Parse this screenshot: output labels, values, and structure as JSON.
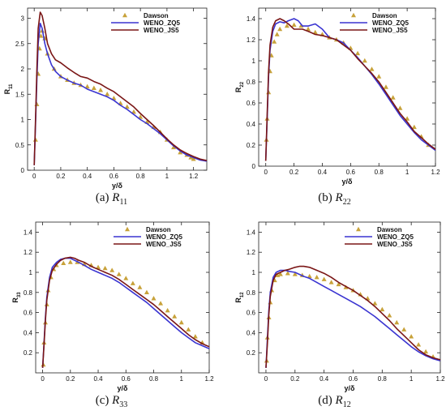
{
  "colors": {
    "dawson": "#c8a23a",
    "weno_zq5": "#3a34d1",
    "weno_js5": "#7a1616"
  },
  "chart_data": [
    {
      "type": "line",
      "panel_tag": "(a)",
      "symbol": "R",
      "subscript": "11",
      "xlabel": "y/δ",
      "ylabel_main": "R",
      "ylabel_sub": "11",
      "xlim": [
        -0.05,
        1.3
      ],
      "ylim": [
        0,
        3.2
      ],
      "xticks": [
        "0",
        "0.2",
        "0.4",
        "0.6",
        "0.8",
        "1",
        "1.2"
      ],
      "xtick_values": [
        0,
        0.2,
        0.4,
        0.6,
        0.8,
        1.0,
        1.2
      ],
      "yticks": [
        "0",
        "0.5",
        "1",
        "1.5",
        "2",
        "2.5",
        "3"
      ],
      "ytick_values": [
        0,
        0.5,
        1,
        1.5,
        2,
        2.5,
        3
      ],
      "legend_position": "top-right",
      "series": [
        {
          "name": "Dawson",
          "style": "markers",
          "x": [
            0.01,
            0.02,
            0.03,
            0.04,
            0.05,
            0.06,
            0.08,
            0.1,
            0.15,
            0.2,
            0.25,
            0.3,
            0.35,
            0.4,
            0.45,
            0.5,
            0.55,
            0.6,
            0.65,
            0.7,
            0.75,
            0.8,
            0.85,
            0.9,
            0.95,
            1.0,
            1.05,
            1.1,
            1.15,
            1.18,
            1.2
          ],
          "y": [
            0.6,
            1.3,
            1.9,
            2.4,
            2.65,
            2.75,
            2.6,
            2.3,
            2.0,
            1.85,
            1.78,
            1.72,
            1.68,
            1.65,
            1.62,
            1.58,
            1.5,
            1.42,
            1.32,
            1.25,
            1.15,
            1.05,
            0.95,
            0.85,
            0.75,
            0.6,
            0.45,
            0.35,
            0.3,
            0.25,
            0.22
          ]
        },
        {
          "name": "WENO_ZQ5",
          "style": "line",
          "x": [
            0,
            0.01,
            0.02,
            0.03,
            0.045,
            0.06,
            0.08,
            0.1,
            0.13,
            0.16,
            0.2,
            0.25,
            0.3,
            0.35,
            0.4,
            0.45,
            0.5,
            0.55,
            0.6,
            0.65,
            0.7,
            0.75,
            0.8,
            0.85,
            0.9,
            0.95,
            1.0,
            1.05,
            1.1,
            1.15,
            1.2,
            1.25,
            1.3
          ],
          "y": [
            0.1,
            0.9,
            1.8,
            2.5,
            2.9,
            2.8,
            2.5,
            2.3,
            2.08,
            1.95,
            1.85,
            1.78,
            1.72,
            1.68,
            1.6,
            1.55,
            1.5,
            1.45,
            1.38,
            1.28,
            1.2,
            1.1,
            1.0,
            0.92,
            0.82,
            0.72,
            0.6,
            0.48,
            0.38,
            0.3,
            0.25,
            0.2,
            0.18
          ]
        },
        {
          "name": "WENO_JS5",
          "style": "line",
          "x": [
            0,
            0.01,
            0.02,
            0.03,
            0.045,
            0.06,
            0.08,
            0.1,
            0.13,
            0.16,
            0.2,
            0.25,
            0.3,
            0.35,
            0.4,
            0.45,
            0.5,
            0.55,
            0.6,
            0.65,
            0.7,
            0.75,
            0.8,
            0.85,
            0.9,
            0.95,
            1.0,
            1.05,
            1.1,
            1.15,
            1.2,
            1.25,
            1.3
          ],
          "y": [
            0.1,
            1.0,
            2.0,
            2.8,
            3.12,
            3.05,
            2.8,
            2.5,
            2.3,
            2.18,
            2.12,
            2.02,
            1.93,
            1.85,
            1.82,
            1.75,
            1.7,
            1.62,
            1.55,
            1.45,
            1.35,
            1.25,
            1.12,
            1.0,
            0.88,
            0.75,
            0.62,
            0.5,
            0.4,
            0.33,
            0.27,
            0.22,
            0.19
          ]
        }
      ]
    },
    {
      "type": "line",
      "panel_tag": "(b)",
      "symbol": "R",
      "subscript": "22",
      "xlabel": "y/δ",
      "ylabel_main": "R",
      "ylabel_sub": "22",
      "xlim": [
        -0.05,
        1.2
      ],
      "ylim": [
        0,
        1.5
      ],
      "xticks": [
        "0",
        "0.2",
        "0.4",
        "0.6",
        "0.8",
        "1",
        "1.2"
      ],
      "xtick_values": [
        0,
        0.2,
        0.4,
        0.6,
        0.8,
        1.0,
        1.2
      ],
      "yticks": [
        "0",
        "0.2",
        "0.4",
        "0.6",
        "0.8",
        "1",
        "1.2",
        "1.4"
      ],
      "ytick_values": [
        0,
        0.2,
        0.4,
        0.6,
        0.8,
        1.0,
        1.2,
        1.4
      ],
      "legend_position": "top-right",
      "series": [
        {
          "name": "Dawson",
          "style": "markers",
          "x": [
            0.005,
            0.01,
            0.02,
            0.03,
            0.04,
            0.06,
            0.08,
            0.1,
            0.15,
            0.2,
            0.25,
            0.3,
            0.35,
            0.4,
            0.45,
            0.5,
            0.55,
            0.6,
            0.65,
            0.7,
            0.75,
            0.8,
            0.85,
            0.9,
            0.95,
            1.0,
            1.05,
            1.1,
            1.15
          ],
          "y": [
            0.25,
            0.45,
            0.7,
            0.9,
            1.05,
            1.18,
            1.25,
            1.3,
            1.33,
            1.34,
            1.33,
            1.3,
            1.27,
            1.25,
            1.22,
            1.2,
            1.17,
            1.12,
            1.07,
            1.0,
            0.92,
            0.85,
            0.75,
            0.65,
            0.55,
            0.45,
            0.37,
            0.28,
            0.2
          ]
        },
        {
          "name": "WENO_ZQ5",
          "style": "line",
          "x": [
            0,
            0.01,
            0.02,
            0.03,
            0.05,
            0.07,
            0.1,
            0.13,
            0.16,
            0.2,
            0.23,
            0.26,
            0.3,
            0.35,
            0.4,
            0.45,
            0.5,
            0.55,
            0.6,
            0.65,
            0.7,
            0.75,
            0.8,
            0.85,
            0.9,
            0.95,
            1.0,
            1.05,
            1.1,
            1.15,
            1.2
          ],
          "y": [
            0.05,
            0.45,
            0.85,
            1.1,
            1.28,
            1.35,
            1.37,
            1.36,
            1.38,
            1.4,
            1.38,
            1.33,
            1.33,
            1.35,
            1.3,
            1.22,
            1.2,
            1.17,
            1.1,
            1.03,
            0.95,
            0.87,
            0.78,
            0.68,
            0.58,
            0.48,
            0.4,
            0.32,
            0.25,
            0.2,
            0.15
          ]
        },
        {
          "name": "WENO_JS5",
          "style": "line",
          "x": [
            0,
            0.01,
            0.02,
            0.03,
            0.05,
            0.07,
            0.1,
            0.13,
            0.16,
            0.2,
            0.23,
            0.26,
            0.3,
            0.35,
            0.4,
            0.45,
            0.5,
            0.55,
            0.6,
            0.65,
            0.7,
            0.75,
            0.8,
            0.85,
            0.9,
            0.95,
            1.0,
            1.05,
            1.1,
            1.15,
            1.2
          ],
          "y": [
            0.05,
            0.5,
            0.9,
            1.15,
            1.32,
            1.38,
            1.4,
            1.38,
            1.35,
            1.3,
            1.3,
            1.3,
            1.28,
            1.25,
            1.24,
            1.22,
            1.2,
            1.15,
            1.1,
            1.02,
            0.95,
            0.88,
            0.8,
            0.7,
            0.6,
            0.5,
            0.42,
            0.33,
            0.27,
            0.21,
            0.16
          ]
        }
      ]
    },
    {
      "type": "line",
      "panel_tag": "(c)",
      "symbol": "R",
      "subscript": "33",
      "xlabel": "y/δ",
      "ylabel_main": "R",
      "ylabel_sub": "33",
      "xlim": [
        -0.05,
        1.2
      ],
      "ylim": [
        0,
        1.5
      ],
      "xticks": [
        "0",
        "0.2",
        "0.4",
        "0.6",
        "0.8",
        "1",
        "1.2"
      ],
      "xtick_values": [
        0,
        0.2,
        0.4,
        0.6,
        0.8,
        1.0,
        1.2
      ],
      "yticks": [
        "0.2",
        "0.4",
        "0.6",
        "0.8",
        "1",
        "1.2",
        "1.4"
      ],
      "ytick_values": [
        0.2,
        0.4,
        0.6,
        0.8,
        1.0,
        1.2,
        1.4
      ],
      "legend_position": "top-right",
      "series": [
        {
          "name": "Dawson",
          "style": "markers",
          "x": [
            0.005,
            0.01,
            0.02,
            0.03,
            0.04,
            0.06,
            0.08,
            0.1,
            0.15,
            0.2,
            0.25,
            0.3,
            0.35,
            0.4,
            0.45,
            0.5,
            0.55,
            0.6,
            0.65,
            0.7,
            0.75,
            0.8,
            0.85,
            0.9,
            0.95,
            1.0,
            1.05,
            1.1,
            1.15
          ],
          "y": [
            0.08,
            0.3,
            0.5,
            0.68,
            0.82,
            0.95,
            1.03,
            1.07,
            1.09,
            1.1,
            1.1,
            1.08,
            1.07,
            1.05,
            1.04,
            1.02,
            0.98,
            0.94,
            0.89,
            0.85,
            0.8,
            0.74,
            0.69,
            0.62,
            0.56,
            0.5,
            0.43,
            0.36,
            0.3
          ]
        },
        {
          "name": "WENO_ZQ5",
          "style": "line",
          "x": [
            0,
            0.01,
            0.02,
            0.03,
            0.05,
            0.07,
            0.1,
            0.13,
            0.16,
            0.2,
            0.23,
            0.26,
            0.3,
            0.35,
            0.4,
            0.45,
            0.5,
            0.55,
            0.6,
            0.65,
            0.7,
            0.75,
            0.8,
            0.85,
            0.9,
            0.95,
            1.0,
            1.05,
            1.1,
            1.15,
            1.2
          ],
          "y": [
            0.05,
            0.3,
            0.55,
            0.75,
            0.95,
            1.05,
            1.1,
            1.13,
            1.14,
            1.14,
            1.12,
            1.1,
            1.07,
            1.03,
            1.0,
            0.97,
            0.94,
            0.9,
            0.85,
            0.8,
            0.75,
            0.7,
            0.64,
            0.58,
            0.52,
            0.46,
            0.4,
            0.35,
            0.3,
            0.27,
            0.24
          ]
        },
        {
          "name": "WENO_JS5",
          "style": "line",
          "x": [
            0,
            0.01,
            0.02,
            0.03,
            0.05,
            0.07,
            0.1,
            0.13,
            0.16,
            0.2,
            0.23,
            0.26,
            0.3,
            0.35,
            0.4,
            0.45,
            0.5,
            0.55,
            0.6,
            0.65,
            0.7,
            0.75,
            0.8,
            0.85,
            0.9,
            0.95,
            1.0,
            1.05,
            1.1,
            1.15,
            1.2
          ],
          "y": [
            0.05,
            0.28,
            0.52,
            0.72,
            0.92,
            1.02,
            1.08,
            1.12,
            1.14,
            1.15,
            1.14,
            1.12,
            1.1,
            1.06,
            1.03,
            1.0,
            0.97,
            0.93,
            0.88,
            0.83,
            0.78,
            0.73,
            0.68,
            0.62,
            0.56,
            0.5,
            0.44,
            0.38,
            0.33,
            0.29,
            0.26
          ]
        }
      ]
    },
    {
      "type": "line",
      "panel_tag": "(d)",
      "symbol": "R",
      "subscript": "12",
      "xlabel": "y/δ",
      "ylabel_main": "R",
      "ylabel_sub": "12",
      "xlim": [
        -0.05,
        1.2
      ],
      "ylim": [
        0,
        1.5
      ],
      "xticks": [
        "0",
        "0.2",
        "0.4",
        "0.6",
        "0.8",
        "1",
        "1.2"
      ],
      "xtick_values": [
        0,
        0.2,
        0.4,
        0.6,
        0.8,
        1.0,
        1.2
      ],
      "yticks": [
        "0.2",
        "0.4",
        "0.6",
        "0.8",
        "1",
        "1.2",
        "1.4"
      ],
      "ytick_values": [
        0.2,
        0.4,
        0.6,
        0.8,
        1.0,
        1.2,
        1.4
      ],
      "legend_position": "top-right",
      "series": [
        {
          "name": "Dawson",
          "style": "markers",
          "x": [
            0.005,
            0.01,
            0.02,
            0.03,
            0.04,
            0.06,
            0.08,
            0.1,
            0.15,
            0.2,
            0.25,
            0.3,
            0.35,
            0.4,
            0.45,
            0.5,
            0.55,
            0.6,
            0.65,
            0.7,
            0.75,
            0.8,
            0.85,
            0.9,
            0.95,
            1.0,
            1.05,
            1.1,
            1.15
          ],
          "y": [
            0.12,
            0.35,
            0.55,
            0.7,
            0.82,
            0.92,
            0.97,
            0.98,
            0.99,
            0.98,
            0.97,
            0.96,
            0.95,
            0.93,
            0.9,
            0.88,
            0.85,
            0.82,
            0.78,
            0.74,
            0.69,
            0.63,
            0.57,
            0.5,
            0.43,
            0.36,
            0.28,
            0.21,
            0.16
          ]
        },
        {
          "name": "WENO_ZQ5",
          "style": "line",
          "x": [
            0,
            0.01,
            0.02,
            0.03,
            0.05,
            0.07,
            0.1,
            0.13,
            0.16,
            0.2,
            0.23,
            0.26,
            0.3,
            0.35,
            0.4,
            0.45,
            0.5,
            0.55,
            0.6,
            0.65,
            0.7,
            0.75,
            0.8,
            0.85,
            0.9,
            0.95,
            1.0,
            1.05,
            1.1,
            1.15,
            1.2
          ],
          "y": [
            0.05,
            0.35,
            0.62,
            0.8,
            0.95,
            1.0,
            1.02,
            1.02,
            1.01,
            1.0,
            0.98,
            0.96,
            0.94,
            0.9,
            0.86,
            0.82,
            0.78,
            0.74,
            0.7,
            0.66,
            0.61,
            0.56,
            0.5,
            0.44,
            0.38,
            0.32,
            0.26,
            0.21,
            0.17,
            0.14,
            0.12
          ]
        },
        {
          "name": "WENO_JS5",
          "style": "line",
          "x": [
            0,
            0.01,
            0.02,
            0.03,
            0.05,
            0.07,
            0.1,
            0.13,
            0.16,
            0.2,
            0.23,
            0.26,
            0.3,
            0.35,
            0.4,
            0.45,
            0.5,
            0.55,
            0.6,
            0.65,
            0.7,
            0.75,
            0.8,
            0.85,
            0.9,
            0.95,
            1.0,
            1.05,
            1.1,
            1.15,
            1.2
          ],
          "y": [
            0.05,
            0.3,
            0.58,
            0.76,
            0.92,
            0.98,
            1.0,
            1.02,
            1.03,
            1.05,
            1.06,
            1.06,
            1.05,
            1.02,
            0.99,
            0.95,
            0.9,
            0.86,
            0.82,
            0.77,
            0.72,
            0.66,
            0.59,
            0.52,
            0.44,
            0.37,
            0.3,
            0.23,
            0.18,
            0.15,
            0.13
          ]
        }
      ]
    }
  ]
}
